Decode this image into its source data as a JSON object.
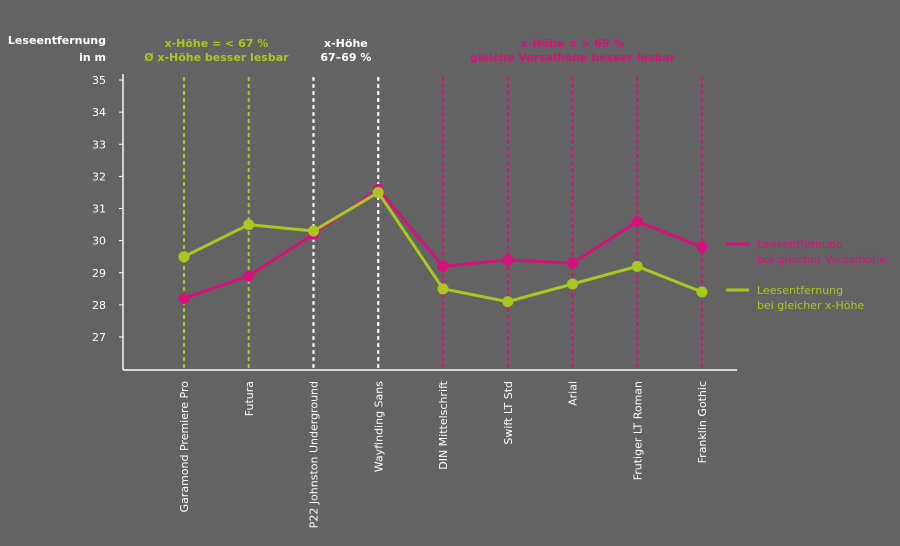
{
  "chart_data": {
    "type": "line",
    "ylabel": [
      "Leseentfernung",
      "in m"
    ],
    "ylim": [
      26,
      35
    ],
    "yticks": [
      27,
      28,
      29,
      30,
      31,
      32,
      33,
      34,
      35
    ],
    "categories": [
      "Garamond Premiere Pro",
      "Futura",
      "P22 Johnston Underground",
      "Wayfinding Sans",
      "DIN Mittelschrift",
      "Swift LT Std",
      "Arial",
      "Frutiger LT Roman",
      "Franklin Gothic"
    ],
    "category_groups": [
      "green",
      "green",
      "white",
      "white",
      "magenta",
      "magenta",
      "magenta",
      "magenta",
      "magenta"
    ],
    "group_headers": [
      {
        "group": "green",
        "lines": [
          "x-Höhe = < 67 %",
          "Ø x-Höhe besser lesbar"
        ],
        "color": "#a8c820"
      },
      {
        "group": "white",
        "lines": [
          "x-Höhe",
          "67–69 %"
        ],
        "color": "#ffffff"
      },
      {
        "group": "magenta",
        "lines": [
          "x-Höhe = > 69 %",
          "gleiche Versalhöhe besser lesbar"
        ],
        "color": "#d4127a"
      }
    ],
    "series": [
      {
        "name": "Leesentfernung bei gleicher Versalhöhe",
        "legend_lines": [
          "Leesentfernung",
          "bei gleicher Versalhöhe"
        ],
        "color": "#d4127a",
        "values": [
          28.2,
          28.9,
          30.2,
          31.6,
          29.2,
          29.4,
          29.3,
          30.6,
          29.8
        ]
      },
      {
        "name": "Leesentfernung bei gleicher x-Höhe",
        "legend_lines": [
          "Leesentfernung",
          "bei gleicher x-Höhe"
        ],
        "color": "#a8c820",
        "values": [
          29.5,
          30.5,
          30.3,
          31.5,
          28.5,
          28.1,
          28.65,
          29.2,
          28.4
        ]
      }
    ],
    "colors": {
      "axis": "#ffffff",
      "background": "#636363"
    }
  }
}
